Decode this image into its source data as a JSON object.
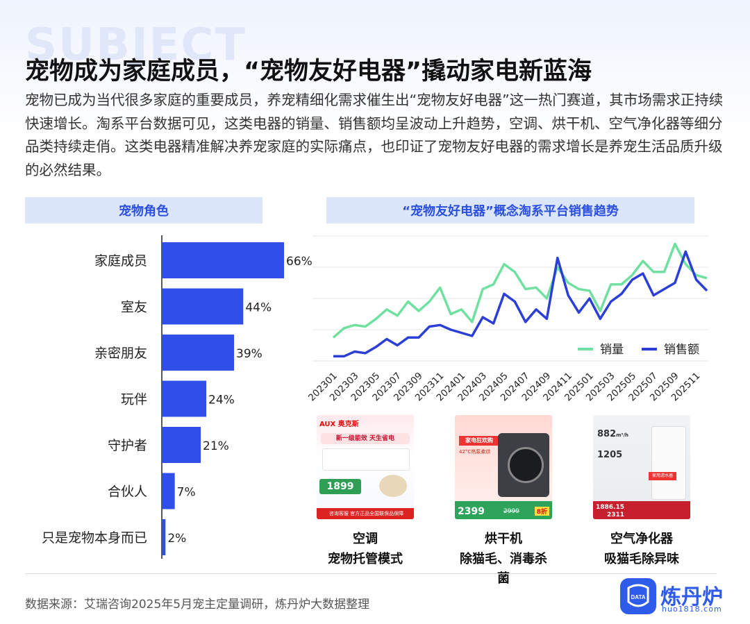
{
  "header": {
    "watermark": "SUBJECT",
    "title": "宠物成为家庭成员，“宠物友好电器”撬动家电新蓝海",
    "intro": "宠物已成为当代很多家庭的重要成员，养宠精细化需求催生出“宠物友好电器”这一热门赛道，其市场需求正持续快速增长。淘系平台数据可见，这类电器的销量、销售额均呈波动上升趋势，空调、烘干机、空气净化器等细分品类持续走俏。这类电器精准解决养宠家庭的实际痛点，也印证了宠物友好电器的需求增长是养宠生活品质升级的必然结果。"
  },
  "left_panel": {
    "heading": "宠物角色"
  },
  "right_panel": {
    "heading": "“宠物友好电器”概念淘系平台销售趋势"
  },
  "colors": {
    "bar": "#2f4fe8",
    "sales_volume": "#6fe0a0",
    "sales_amount": "#2b3fd6",
    "heading_bg": "#dce6fb"
  },
  "chart_data": [
    {
      "type": "bar",
      "orientation": "horizontal",
      "title": "宠物角色",
      "categories": [
        "家庭成员",
        "室友",
        "亲密朋友",
        "玩伴",
        "守护者",
        "合伙人",
        "只是宠物本身而已"
      ],
      "values": [
        66,
        44,
        39,
        24,
        21,
        7,
        2
      ],
      "value_labels": [
        "66%",
        "44%",
        "39%",
        "24%",
        "21%",
        "7%",
        "2%"
      ],
      "grid": false
    },
    {
      "type": "line",
      "title": "“宠物友好电器”概念淘系平台销售趋势",
      "x": [
        "202301",
        "202302",
        "202303",
        "202304",
        "202305",
        "202306",
        "202307",
        "202308",
        "202309",
        "202310",
        "202311",
        "202312",
        "202401",
        "202402",
        "202403",
        "202404",
        "202405",
        "202406",
        "202407",
        "202408",
        "202409",
        "202410",
        "202411",
        "202412",
        "202501",
        "202502",
        "202503",
        "202504",
        "202505",
        "202506",
        "202507",
        "202508",
        "202509",
        "202510",
        "202511",
        "202512"
      ],
      "x_tick_labels": [
        "202301",
        "202303",
        "202305",
        "202307",
        "202309",
        "202311",
        "202401",
        "202403",
        "202405",
        "202407",
        "202409",
        "202411",
        "202501",
        "202503",
        "202505",
        "202507",
        "202509",
        "202511"
      ],
      "series": [
        {
          "name": "销量",
          "values": [
            15,
            21,
            23,
            22,
            27,
            33,
            29,
            38,
            32,
            38,
            47,
            30,
            33,
            25,
            46,
            49,
            62,
            57,
            46,
            47,
            40,
            60,
            50,
            46,
            45,
            32,
            49,
            49,
            55,
            64,
            57,
            57,
            75,
            62,
            55,
            53
          ]
        },
        {
          "name": "销售额",
          "values": [
            3,
            3,
            6,
            5,
            9,
            14,
            10,
            15,
            15,
            22,
            23,
            20,
            18,
            16,
            28,
            24,
            43,
            38,
            25,
            33,
            27,
            66,
            42,
            31,
            40,
            27,
            38,
            43,
            52,
            56,
            42,
            46,
            50,
            70,
            52,
            45
          ]
        }
      ],
      "legend": "bottom-right",
      "ylim": [
        0,
        80
      ],
      "y_axis_labels": false,
      "grid": true
    }
  ],
  "products": [
    {
      "name": "空调",
      "desc": "宠物托管模式",
      "img_texts": [
        "AUX 奥克斯",
        "新一级能效 天生省电",
        "1899",
        "咨询客服",
        "官方正品全国联保品保障"
      ]
    },
    {
      "name": "烘干机",
      "desc": "除猫毛、消毒杀菌",
      "img_texts": [
        "家电狂欢购",
        "42°C热泵柔烘",
        "2399",
        "2999",
        "8折"
      ]
    },
    {
      "name": "空气净化器",
      "desc": "吸猫毛除异味",
      "img_texts": [
        "882",
        "m³/h",
        "1205",
        "家用滤水器",
        "1886.15",
        "2311"
      ]
    }
  ],
  "footer": {
    "source": "数据来源：艾瑞咨询2025年5月宠主定量调研，炼丹炉大数据整理",
    "logo_text": "炼丹炉",
    "logo_badge": "DATA",
    "logo_url": "huo1818.com"
  }
}
